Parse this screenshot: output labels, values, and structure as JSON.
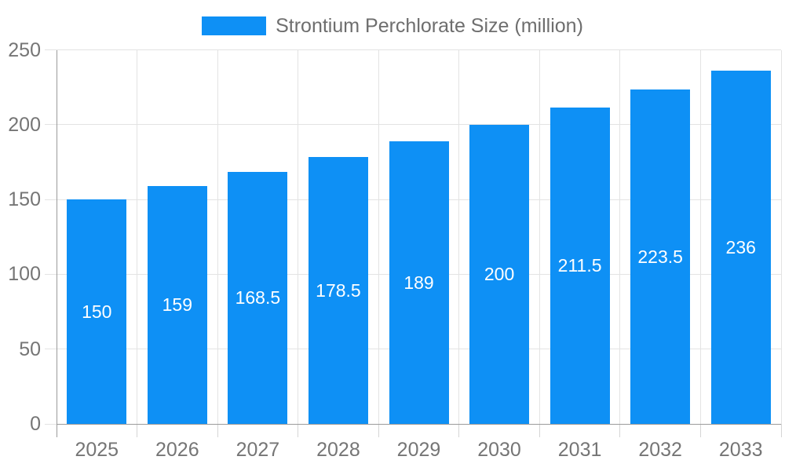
{
  "legend": {
    "label": "Strontium Perchlorate Size (million)"
  },
  "chart_data": {
    "type": "bar",
    "title": "Strontium Perchlorate Size (million)",
    "categories": [
      "2025",
      "2026",
      "2027",
      "2028",
      "2029",
      "2030",
      "2031",
      "2032",
      "2033"
    ],
    "values": [
      150,
      159,
      168.5,
      178.5,
      189,
      200,
      211.5,
      223.5,
      236
    ],
    "value_labels": [
      "150",
      "159",
      "168.5",
      "178.5",
      "189",
      "200",
      "211.5",
      "223.5",
      "236"
    ],
    "xlabel": "",
    "ylabel": "",
    "ylim": [
      0,
      250
    ],
    "yticks": [
      0,
      50,
      100,
      150,
      200,
      250
    ],
    "grid": true,
    "legend_position": "top",
    "value_label_position": "inside-center",
    "colors": {
      "bar": "#0E90F5",
      "grid": "#e3e3e3",
      "axis": "#9b9b9b",
      "tick": "#d5d5d5",
      "axis_label": "#757575",
      "legend_text": "#6e6e6e",
      "value_label": "#ffffff",
      "background": "#ffffff"
    }
  }
}
